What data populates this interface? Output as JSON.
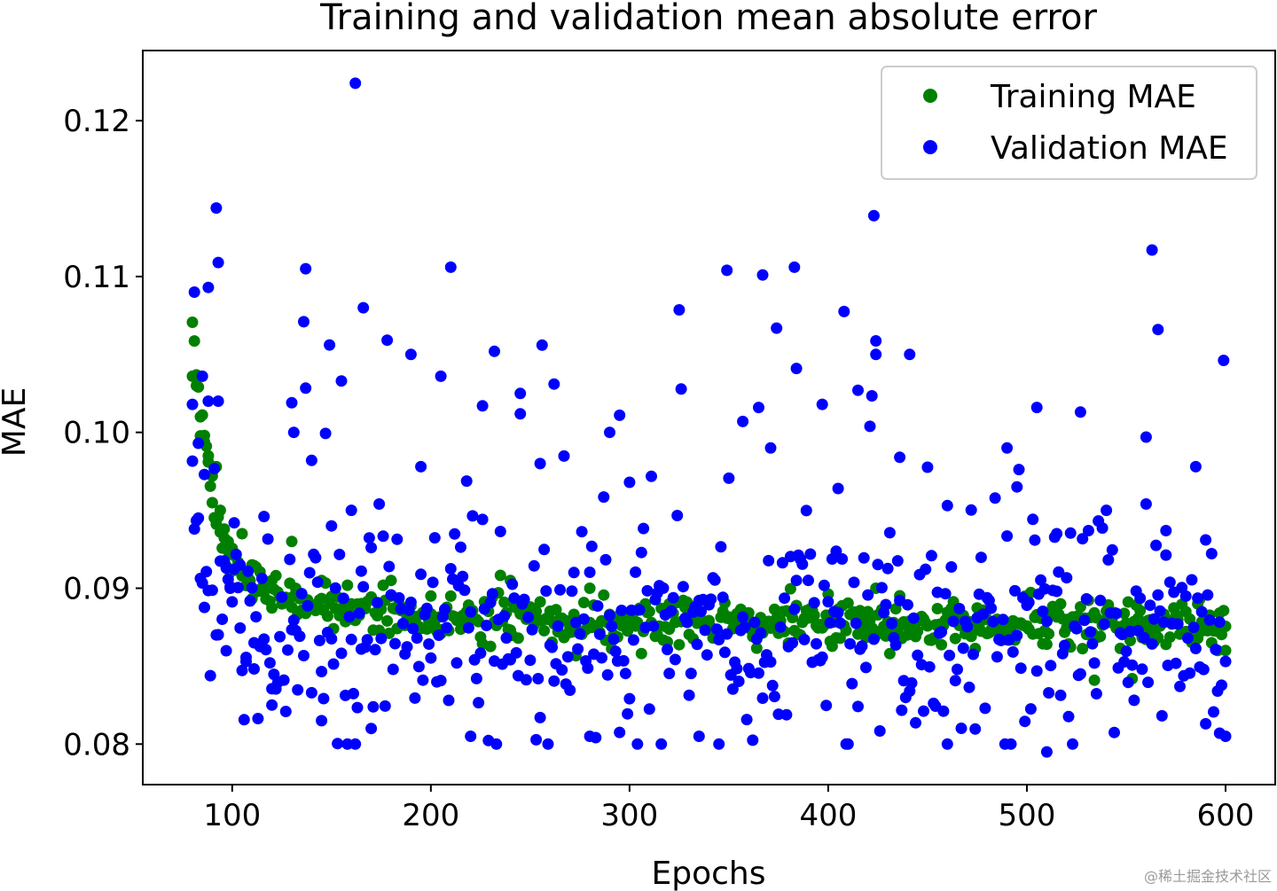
{
  "chart_data": {
    "type": "scatter",
    "title": "Training and validation mean absolute error",
    "xlabel": "Epochs",
    "ylabel": "MAE",
    "xlim": [
      55,
      625
    ],
    "ylim": [
      0.0774,
      0.1245
    ],
    "xticks": [
      100,
      200,
      300,
      400,
      500,
      600
    ],
    "xtick_labels": [
      "100",
      "200",
      "300",
      "400",
      "500",
      "600"
    ],
    "yticks": [
      0.08,
      0.09,
      0.1,
      0.11,
      0.12
    ],
    "ytick_labels": [
      "0.08",
      "0.09",
      "0.10",
      "0.11",
      "0.12"
    ],
    "legend_position": "top-right",
    "x_range": [
      80,
      600
    ],
    "series": [
      {
        "name": "Training MAE",
        "color": "#008000",
        "notable_points": [
          {
            "x": 80,
            "y": 0.1036
          },
          {
            "x": 82,
            "y": 0.103
          },
          {
            "x": 84,
            "y": 0.101
          },
          {
            "x": 86,
            "y": 0.0998
          },
          {
            "x": 88,
            "y": 0.0985
          },
          {
            "x": 90,
            "y": 0.0972
          },
          {
            "x": 92,
            "y": 0.0978
          },
          {
            "x": 94,
            "y": 0.095
          },
          {
            "x": 96,
            "y": 0.0938
          },
          {
            "x": 98,
            "y": 0.093
          },
          {
            "x": 100,
            "y": 0.0925
          },
          {
            "x": 105,
            "y": 0.0935
          },
          {
            "x": 110,
            "y": 0.0915
          },
          {
            "x": 120,
            "y": 0.0905
          },
          {
            "x": 130,
            "y": 0.093
          },
          {
            "x": 145,
            "y": 0.0905
          },
          {
            "x": 160,
            "y": 0.089
          },
          {
            "x": 180,
            "y": 0.0905
          },
          {
            "x": 200,
            "y": 0.0895
          },
          {
            "x": 220,
            "y": 0.0885
          },
          {
            "x": 240,
            "y": 0.0905
          },
          {
            "x": 260,
            "y": 0.088
          },
          {
            "x": 280,
            "y": 0.09
          },
          {
            "x": 300,
            "y": 0.088
          },
          {
            "x": 320,
            "y": 0.089
          },
          {
            "x": 340,
            "y": 0.0875
          },
          {
            "x": 360,
            "y": 0.088
          },
          {
            "x": 380,
            "y": 0.0885
          },
          {
            "x": 400,
            "y": 0.088
          },
          {
            "x": 420,
            "y": 0.0885
          },
          {
            "x": 424,
            "y": 0.09
          },
          {
            "x": 440,
            "y": 0.087
          },
          {
            "x": 460,
            "y": 0.088
          },
          {
            "x": 480,
            "y": 0.088
          },
          {
            "x": 500,
            "y": 0.0875
          },
          {
            "x": 520,
            "y": 0.088
          },
          {
            "x": 534,
            "y": 0.0841
          },
          {
            "x": 540,
            "y": 0.088
          },
          {
            "x": 553,
            "y": 0.0842
          },
          {
            "x": 560,
            "y": 0.087
          },
          {
            "x": 580,
            "y": 0.0885
          },
          {
            "x": 586,
            "y": 0.089
          },
          {
            "x": 596,
            "y": 0.086
          },
          {
            "x": 600,
            "y": 0.086
          }
        ]
      },
      {
        "name": "Validation MAE",
        "color": "#0000ff",
        "notable_points": [
          {
            "x": 80,
            "y": 0.1018
          },
          {
            "x": 81,
            "y": 0.109
          },
          {
            "x": 83,
            "y": 0.0993
          },
          {
            "x": 85,
            "y": 0.1036
          },
          {
            "x": 86,
            "y": 0.0973
          },
          {
            "x": 88,
            "y": 0.1093
          },
          {
            "x": 88,
            "y": 0.102
          },
          {
            "x": 92,
            "y": 0.1144
          },
          {
            "x": 93,
            "y": 0.1109
          },
          {
            "x": 93,
            "y": 0.102
          },
          {
            "x": 97,
            "y": 0.0913
          },
          {
            "x": 99,
            "y": 0.09
          },
          {
            "x": 101,
            "y": 0.0942
          },
          {
            "x": 104,
            "y": 0.0915
          },
          {
            "x": 107,
            "y": 0.0853
          },
          {
            "x": 111,
            "y": 0.0865
          },
          {
            "x": 116,
            "y": 0.0946
          },
          {
            "x": 120,
            "y": 0.0825
          },
          {
            "x": 130,
            "y": 0.1019
          },
          {
            "x": 131,
            "y": 0.1
          },
          {
            "x": 136,
            "y": 0.1071
          },
          {
            "x": 137,
            "y": 0.1105
          },
          {
            "x": 140,
            "y": 0.0982
          },
          {
            "x": 145,
            "y": 0.0815
          },
          {
            "x": 150,
            "y": 0.094
          },
          {
            "x": 155,
            "y": 0.1033
          },
          {
            "x": 160,
            "y": 0.095
          },
          {
            "x": 162,
            "y": 0.1224
          },
          {
            "x": 165,
            "y": 0.0911
          },
          {
            "x": 166,
            "y": 0.108
          },
          {
            "x": 170,
            "y": 0.081
          },
          {
            "x": 190,
            "y": 0.105
          },
          {
            "x": 195,
            "y": 0.0978
          },
          {
            "x": 205,
            "y": 0.1036
          },
          {
            "x": 210,
            "y": 0.1106
          },
          {
            "x": 220,
            "y": 0.0805
          },
          {
            "x": 226,
            "y": 0.1017
          },
          {
            "x": 232,
            "y": 0.1052
          },
          {
            "x": 245,
            "y": 0.1025
          },
          {
            "x": 255,
            "y": 0.098
          },
          {
            "x": 262,
            "y": 0.1031
          },
          {
            "x": 280,
            "y": 0.0805
          },
          {
            "x": 290,
            "y": 0.1
          },
          {
            "x": 295,
            "y": 0.1011
          },
          {
            "x": 300,
            "y": 0.0968
          },
          {
            "x": 335,
            "y": 0.0805
          },
          {
            "x": 345,
            "y": 0.08
          },
          {
            "x": 349,
            "y": 0.1104
          },
          {
            "x": 357,
            "y": 0.1007
          },
          {
            "x": 365,
            "y": 0.1016
          },
          {
            "x": 367,
            "y": 0.1101
          },
          {
            "x": 371,
            "y": 0.099
          },
          {
            "x": 383,
            "y": 0.1106
          },
          {
            "x": 384,
            "y": 0.1041
          },
          {
            "x": 397,
            "y": 0.1018
          },
          {
            "x": 405,
            "y": 0.0964
          },
          {
            "x": 415,
            "y": 0.1027
          },
          {
            "x": 423,
            "y": 0.1139
          },
          {
            "x": 424,
            "y": 0.105
          },
          {
            "x": 436,
            "y": 0.0984
          },
          {
            "x": 441,
            "y": 0.105
          },
          {
            "x": 460,
            "y": 0.0953
          },
          {
            "x": 490,
            "y": 0.099
          },
          {
            "x": 495,
            "y": 0.0965
          },
          {
            "x": 505,
            "y": 0.1016
          },
          {
            "x": 510,
            "y": 0.0795
          },
          {
            "x": 515,
            "y": 0.0935
          },
          {
            "x": 527,
            "y": 0.1013
          },
          {
            "x": 560,
            "y": 0.0997
          },
          {
            "x": 563,
            "y": 0.1117
          },
          {
            "x": 566,
            "y": 0.1066
          },
          {
            "x": 570,
            "y": 0.0937
          },
          {
            "x": 585,
            "y": 0.0978
          },
          {
            "x": 590,
            "y": 0.0931
          },
          {
            "x": 597,
            "y": 0.0807
          },
          {
            "x": 600,
            "y": 0.0805
          }
        ]
      }
    ]
  },
  "watermark": "@稀土掘金技术社区"
}
